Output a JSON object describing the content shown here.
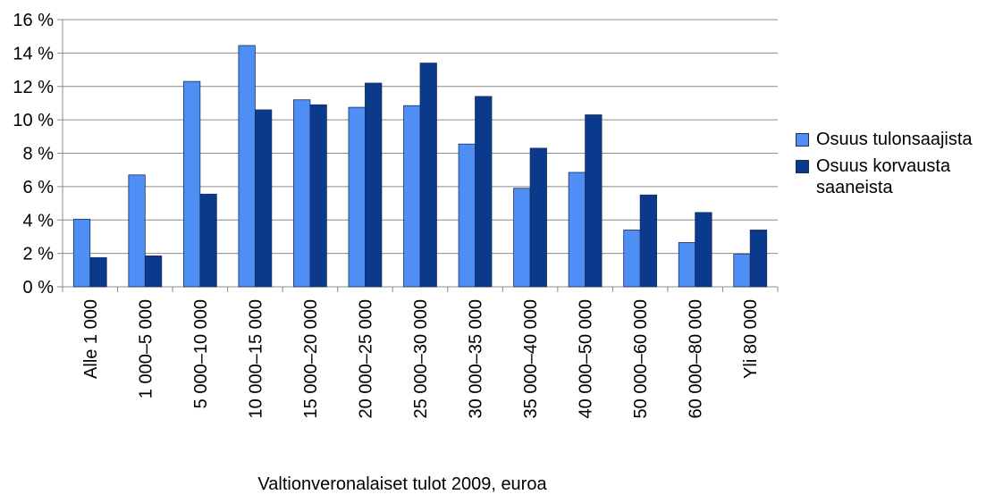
{
  "chart_data": {
    "type": "bar",
    "xlabel": "Valtionveronalaiset tulot 2009, euroa",
    "categories": [
      "Alle 1 000",
      "1 000–5 000",
      "5 000–10 000",
      "10 000–15 000",
      "15 000–20 000",
      "20 000–25 000",
      "25 000–30 000",
      "30 000–35 000",
      "35 000–40 000",
      "40 000–50 000",
      "50 000–60 000",
      "60 000–80 000",
      "Yli 80 000"
    ],
    "series": [
      {
        "name": "Osuus tulonsaajista",
        "color": "#4f8ef5",
        "values": [
          4.05,
          6.7,
          12.3,
          14.45,
          11.2,
          10.75,
          10.85,
          8.55,
          5.9,
          6.85,
          3.4,
          2.65,
          1.95
        ]
      },
      {
        "name": "Osuus korvausta saaneista",
        "color": "#0b3a8c",
        "values": [
          1.75,
          1.85,
          5.55,
          10.6,
          10.9,
          12.2,
          13.4,
          11.4,
          8.3,
          10.3,
          5.5,
          4.45,
          3.4
        ]
      }
    ],
    "ylim": [
      0,
      16
    ],
    "yticks": [
      {
        "value": 0,
        "label": "0 %"
      },
      {
        "value": 2,
        "label": "2 %"
      },
      {
        "value": 4,
        "label": "4 %"
      },
      {
        "value": 6,
        "label": "6 %"
      },
      {
        "value": 8,
        "label": "8 %"
      },
      {
        "value": 10,
        "label": "10 %"
      },
      {
        "value": 12,
        "label": "12 %"
      },
      {
        "value": 14,
        "label": "14 %"
      },
      {
        "value": 16,
        "label": "16 %"
      }
    ],
    "grid": true
  }
}
